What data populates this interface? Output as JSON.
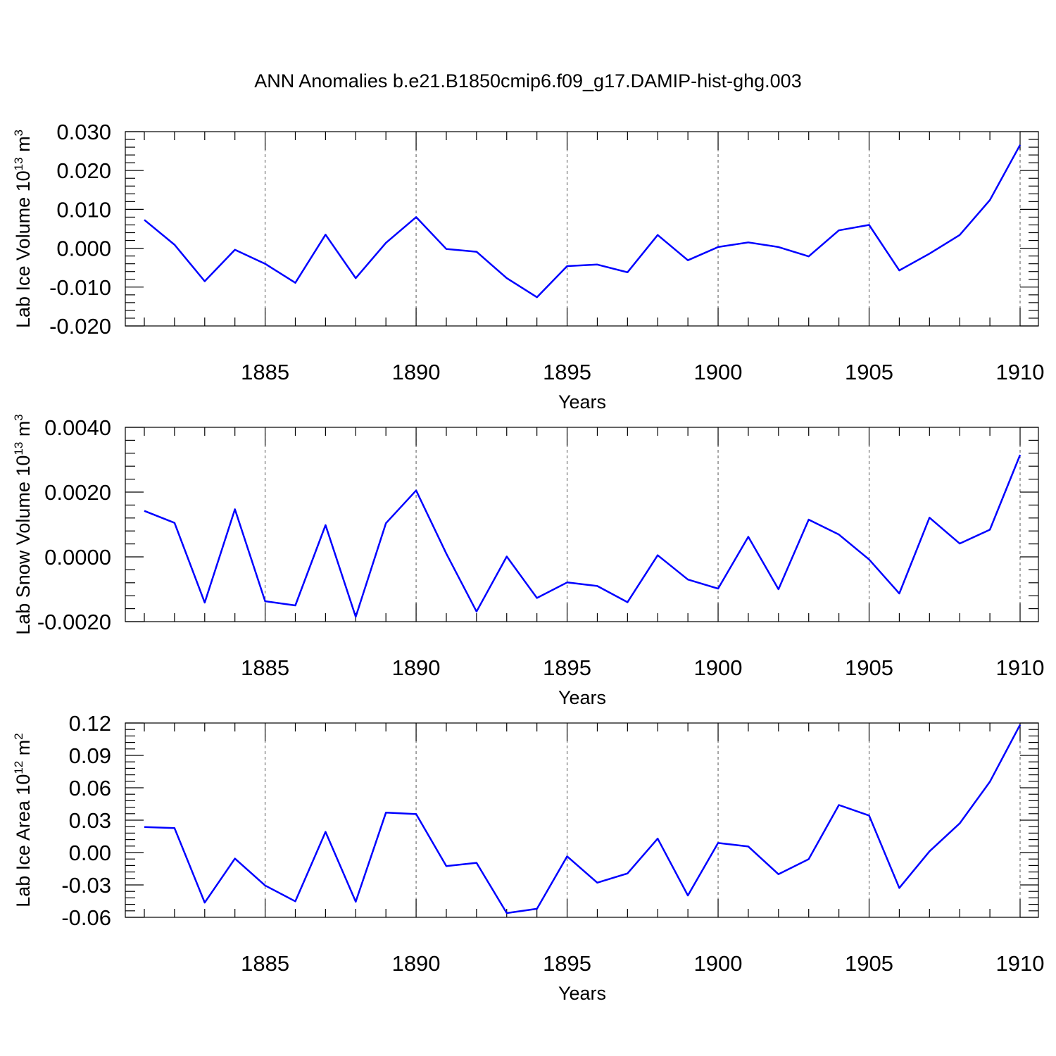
{
  "title": "ANN Anomalies b.e21.B1850cmip6.f09_g17.DAMIP-hist-ghg.003",
  "colors": {
    "line": "#0000ff",
    "axis": "#000000",
    "grid": "#555555"
  },
  "chart_data": [
    {
      "type": "line",
      "ylabel_main": "Lab Ice Volume 10",
      "ylabel_sup1": "13",
      "ylabel_mid": " m",
      "ylabel_sup2": "3",
      "xlabel": "Years",
      "xlim": [
        1881,
        1910
      ],
      "ylim": [
        -0.02,
        0.03
      ],
      "yticks": [
        -0.02,
        -0.01,
        0.0,
        0.01,
        0.02,
        0.03
      ],
      "ytick_labels": [
        "-0.020",
        "-0.010",
        "0.000",
        "0.010",
        "0.020",
        "0.030"
      ],
      "xticks": [
        1885,
        1890,
        1895,
        1900,
        1905,
        1910
      ],
      "xtick_labels": [
        "1885",
        "1890",
        "1895",
        "1900",
        "1905",
        "1910"
      ],
      "grid_x": true,
      "x": [
        1881,
        1882,
        1883,
        1884,
        1885,
        1886,
        1887,
        1888,
        1889,
        1890,
        1891,
        1892,
        1893,
        1894,
        1895,
        1896,
        1897,
        1898,
        1899,
        1900,
        1901,
        1902,
        1903,
        1904,
        1905,
        1906,
        1907,
        1908,
        1909,
        1910
      ],
      "values": [
        0.0073,
        0.0009,
        -0.0085,
        -0.0004,
        -0.004,
        -0.0089,
        0.0035,
        -0.0077,
        0.0014,
        0.008,
        -0.0002,
        -0.0009,
        -0.0077,
        -0.0126,
        -0.0046,
        -0.0042,
        -0.0062,
        0.0034,
        -0.0031,
        0.0003,
        0.0015,
        0.0003,
        -0.0021,
        0.0046,
        0.006,
        -0.0057,
        -0.0014,
        0.0034,
        0.0124,
        0.0266
      ]
    },
    {
      "type": "line",
      "ylabel_main": "Lab Snow Volume 10",
      "ylabel_sup1": "13",
      "ylabel_mid": " m",
      "ylabel_sup2": "3",
      "xlabel": "Years",
      "xlim": [
        1881,
        1910
      ],
      "ylim": [
        -0.002,
        0.004
      ],
      "yticks": [
        -0.002,
        0.0,
        0.002,
        0.004
      ],
      "ytick_labels": [
        "-0.0020",
        "0.0000",
        "0.0020",
        "0.0040"
      ],
      "xticks": [
        1885,
        1890,
        1895,
        1900,
        1905,
        1910
      ],
      "xtick_labels": [
        "1885",
        "1890",
        "1895",
        "1900",
        "1905",
        "1910"
      ],
      "grid_x": true,
      "x": [
        1881,
        1882,
        1883,
        1884,
        1885,
        1886,
        1887,
        1888,
        1889,
        1890,
        1891,
        1892,
        1893,
        1894,
        1895,
        1896,
        1897,
        1898,
        1899,
        1900,
        1901,
        1902,
        1903,
        1904,
        1905,
        1906,
        1907,
        1908,
        1909,
        1910
      ],
      "values": [
        0.00142,
        0.00105,
        -0.00141,
        0.00147,
        -0.00137,
        -0.0015,
        0.00098,
        -0.00185,
        0.00104,
        0.00205,
        0.0001,
        -0.00169,
        1e-05,
        -0.00127,
        -0.00079,
        -0.0009,
        -0.0014,
        5e-05,
        -0.0007,
        -0.00098,
        0.00062,
        -0.001,
        0.00115,
        0.00069,
        -8e-05,
        -0.00113,
        0.00121,
        0.00041,
        0.00084,
        0.00315
      ]
    },
    {
      "type": "line",
      "ylabel_main": "Lab Ice Area 10",
      "ylabel_sup1": "12",
      "ylabel_mid": " m",
      "ylabel_sup2": "2",
      "xlabel": "Years",
      "xlim": [
        1881,
        1910
      ],
      "ylim": [
        -0.06,
        0.12
      ],
      "yticks": [
        -0.06,
        -0.03,
        0.0,
        0.03,
        0.06,
        0.09,
        0.12
      ],
      "ytick_labels": [
        "-0.06",
        "-0.03",
        "0.00",
        "0.03",
        "0.06",
        "0.09",
        "0.12"
      ],
      "xticks": [
        1885,
        1890,
        1895,
        1900,
        1905,
        1910
      ],
      "xtick_labels": [
        "1885",
        "1890",
        "1895",
        "1900",
        "1905",
        "1910"
      ],
      "grid_x": true,
      "x": [
        1881,
        1882,
        1883,
        1884,
        1885,
        1886,
        1887,
        1888,
        1889,
        1890,
        1891,
        1892,
        1893,
        1894,
        1895,
        1896,
        1897,
        1898,
        1899,
        1900,
        1901,
        1902,
        1903,
        1904,
        1905,
        1906,
        1907,
        1908,
        1909,
        1910
      ],
      "values": [
        0.0237,
        0.0226,
        -0.0464,
        -0.0056,
        -0.0305,
        -0.0452,
        0.0192,
        -0.0455,
        0.037,
        0.0356,
        -0.0125,
        -0.0095,
        -0.0561,
        -0.0521,
        -0.0035,
        -0.0279,
        -0.0194,
        0.0129,
        -0.0398,
        0.0089,
        0.0056,
        -0.0201,
        -0.0061,
        0.044,
        0.0343,
        -0.0328,
        0.0011,
        0.027,
        0.0656,
        0.1184
      ]
    }
  ]
}
